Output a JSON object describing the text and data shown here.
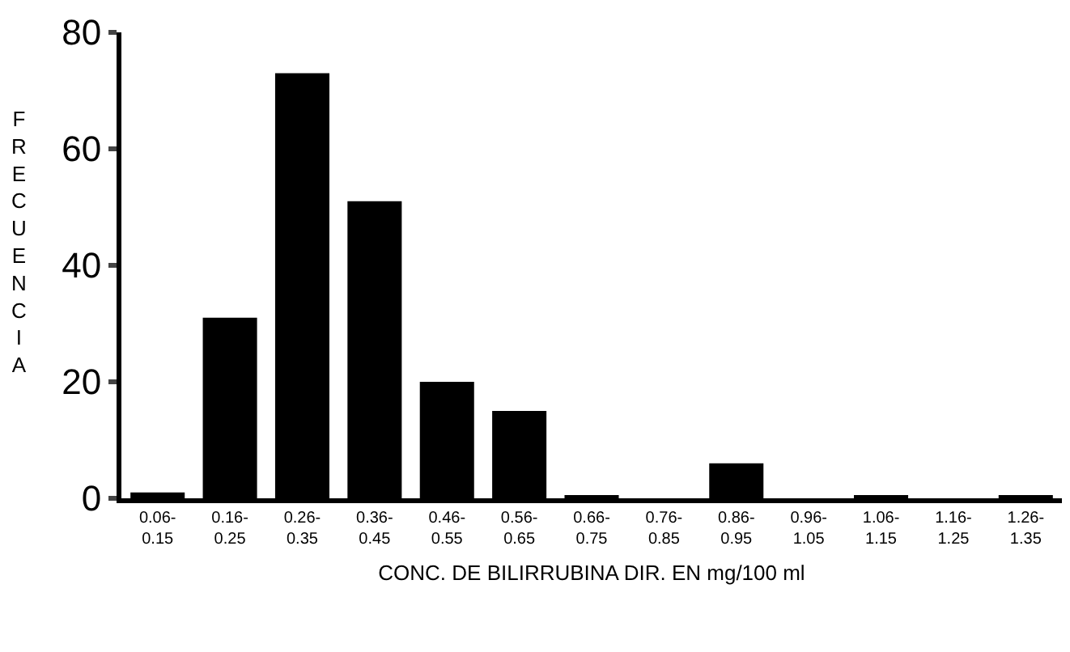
{
  "chart_data": {
    "type": "bar",
    "xlabel": "CONC. DE BILIRRUBINA DIR. EN mg/100 ml",
    "ylabel": "FRECUENCIA",
    "categories": [
      "0.06-0.15",
      "0.16-0.25",
      "0.26-0.35",
      "0.36-0.45",
      "0.46-0.55",
      "0.56-0.65",
      "0.66-0.75",
      "0.76-0.85",
      "0.86-0.95",
      "0.96-1.05",
      "1.06-1.15",
      "1.16-1.25",
      "1.26-1.35"
    ],
    "values": [
      1,
      31,
      73,
      51,
      20,
      15,
      0.5,
      0,
      6,
      0,
      0.5,
      0,
      0.5
    ],
    "color": "#000000",
    "ylim": [
      0,
      80
    ],
    "yticks": [
      0,
      20,
      40,
      60,
      80
    ],
    "grid": false,
    "legend": false
  }
}
